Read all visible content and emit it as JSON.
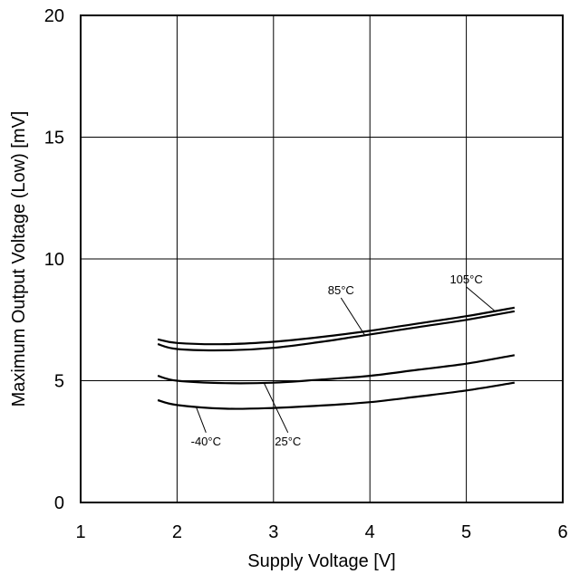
{
  "chart_data": {
    "type": "line",
    "title": "",
    "xlabel": "Supply Voltage [V]",
    "ylabel": "Maximum Output Voltage (Low) [mV]",
    "xlim": [
      1,
      6
    ],
    "ylim": [
      0,
      20
    ],
    "xticks": [
      "1",
      "2",
      "3",
      "4",
      "5",
      "6"
    ],
    "yticks": [
      "0",
      "5",
      "10",
      "15",
      "20"
    ],
    "grid": true,
    "series": [
      {
        "name": "105°C",
        "x": [
          1.8,
          2.0,
          2.5,
          3.0,
          3.5,
          4.0,
          4.5,
          5.0,
          5.5
        ],
        "y": [
          6.7,
          6.55,
          6.5,
          6.6,
          6.8,
          7.05,
          7.35,
          7.65,
          8.0
        ]
      },
      {
        "name": "85°C",
        "x": [
          1.8,
          2.0,
          2.5,
          3.0,
          3.5,
          4.0,
          4.5,
          5.0,
          5.5
        ],
        "y": [
          6.5,
          6.3,
          6.25,
          6.35,
          6.6,
          6.9,
          7.2,
          7.5,
          7.85
        ]
      },
      {
        "name": "25°C",
        "x": [
          1.8,
          2.0,
          2.5,
          3.0,
          3.5,
          4.0,
          4.5,
          5.0,
          5.5
        ],
        "y": [
          5.2,
          5.0,
          4.9,
          4.92,
          5.05,
          5.2,
          5.45,
          5.7,
          6.05
        ]
      },
      {
        "name": "-40°C",
        "x": [
          1.8,
          2.0,
          2.5,
          3.0,
          3.5,
          4.0,
          4.5,
          5.0,
          5.5
        ],
        "y": [
          4.2,
          4.0,
          3.85,
          3.88,
          3.98,
          4.12,
          4.35,
          4.6,
          4.92
        ]
      }
    ],
    "annotations": [
      {
        "text": "105°C",
        "series": "105°C",
        "label_at": [
          5.0,
          9.0
        ],
        "points_to": [
          5.3,
          7.85
        ]
      },
      {
        "text": "85°C",
        "series": "85°C",
        "label_at": [
          3.7,
          8.55
        ],
        "points_to": [
          3.95,
          6.85
        ]
      },
      {
        "text": "25°C",
        "series": "25°C",
        "label_at": [
          3.15,
          2.35
        ],
        "points_to": [
          2.9,
          4.92
        ]
      },
      {
        "text": "-40°C",
        "series": "-40°C",
        "label_at": [
          2.3,
          2.35
        ],
        "points_to": [
          2.2,
          3.9
        ]
      }
    ]
  }
}
